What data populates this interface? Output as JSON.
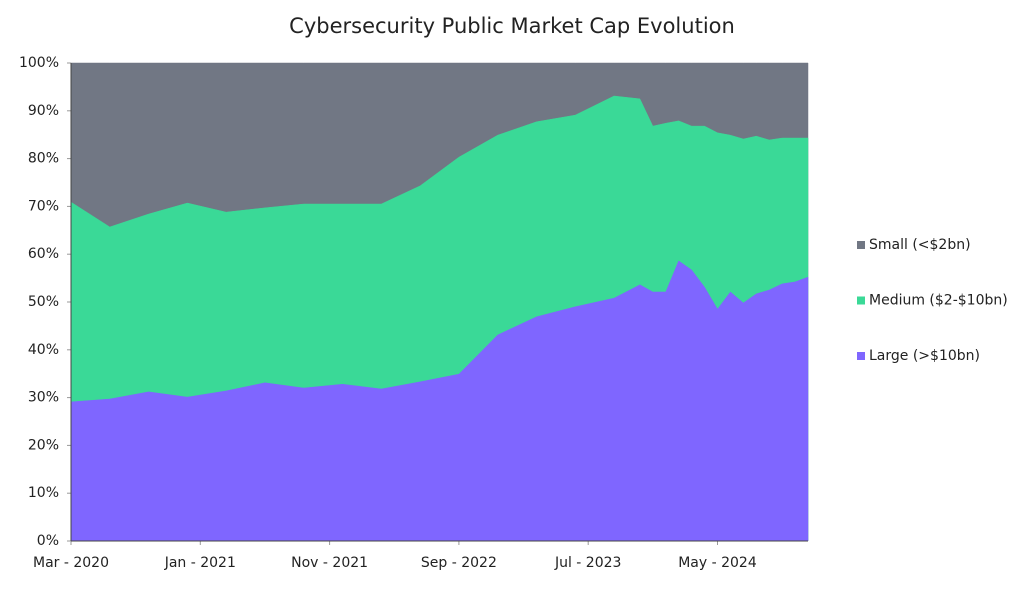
{
  "chart_data": {
    "type": "stacked_area",
    "title": "Cybersecurity Public Market Cap Evolution",
    "x": [
      "2020-03",
      "2020-06",
      "2020-09",
      "2020-12",
      "2021-03",
      "2021-06",
      "2021-09",
      "2021-12",
      "2022-03",
      "2022-06",
      "2022-09",
      "2022-12",
      "2023-03",
      "2023-06",
      "2023-09",
      "2023-11",
      "2023-12",
      "2024-01",
      "2024-02",
      "2024-03",
      "2024-04",
      "2024-05",
      "2024-06",
      "2024-07",
      "2024-08",
      "2024-09",
      "2024-10",
      "2024-11",
      "2024-12"
    ],
    "xlim": [
      "2020-03",
      "2024-12"
    ],
    "xticks": [
      {
        "value": "2020-03",
        "label": "Mar - 2020"
      },
      {
        "value": "2021-01",
        "label": "Jan - 2021"
      },
      {
        "value": "2021-11",
        "label": "Nov - 2021"
      },
      {
        "value": "2022-09",
        "label": "Sep - 2022"
      },
      {
        "value": "2023-07",
        "label": "Jul - 2023"
      },
      {
        "value": "2024-05",
        "label": "May - 2024"
      }
    ],
    "ylim": [
      0,
      100
    ],
    "yticks": [
      {
        "value": 0,
        "label": "0%"
      },
      {
        "value": 10,
        "label": "10%"
      },
      {
        "value": 20,
        "label": "20%"
      },
      {
        "value": 30,
        "label": "30%"
      },
      {
        "value": 40,
        "label": "40%"
      },
      {
        "value": 50,
        "label": "50%"
      },
      {
        "value": 60,
        "label": "60%"
      },
      {
        "value": 70,
        "label": "70%"
      },
      {
        "value": 80,
        "label": "80%"
      },
      {
        "value": 90,
        "label": "90%"
      },
      {
        "value": 100,
        "label": "100%"
      }
    ],
    "legend": "right",
    "series": [
      {
        "name": "Large (>$10bn)",
        "color": "#7f66ff",
        "values": [
          29.1,
          29.7,
          31.2,
          30.1,
          31.4,
          33.1,
          32.0,
          32.8,
          31.8,
          33.3,
          34.9,
          43.1,
          46.9,
          49.0,
          50.8,
          53.6,
          52.1,
          52.1,
          58.6,
          56.7,
          53.1,
          48.5,
          52.1,
          49.8,
          51.7,
          52.5,
          53.8,
          54.2,
          55.2
        ]
      },
      {
        "name": "Medium ($2-$10bn)",
        "color": "#3ad997",
        "values": [
          41.8,
          36.0,
          37.2,
          40.6,
          37.4,
          36.6,
          38.5,
          37.7,
          38.7,
          41.0,
          45.4,
          41.8,
          40.8,
          40.1,
          42.3,
          38.9,
          34.7,
          35.3,
          29.3,
          30.1,
          33.7,
          36.9,
          32.8,
          34.3,
          33.0,
          31.4,
          30.5,
          30.1,
          29.1
        ]
      },
      {
        "name": "Small (<$2bn)",
        "color": "#717784",
        "values": [
          29.1,
          34.3,
          31.6,
          29.3,
          31.2,
          30.3,
          29.5,
          29.5,
          29.5,
          25.7,
          19.7,
          15.1,
          12.3,
          10.9,
          6.9,
          7.5,
          13.2,
          12.6,
          12.1,
          13.2,
          13.2,
          14.6,
          15.1,
          15.9,
          15.3,
          16.1,
          15.7,
          15.7,
          15.7
        ]
      }
    ]
  }
}
